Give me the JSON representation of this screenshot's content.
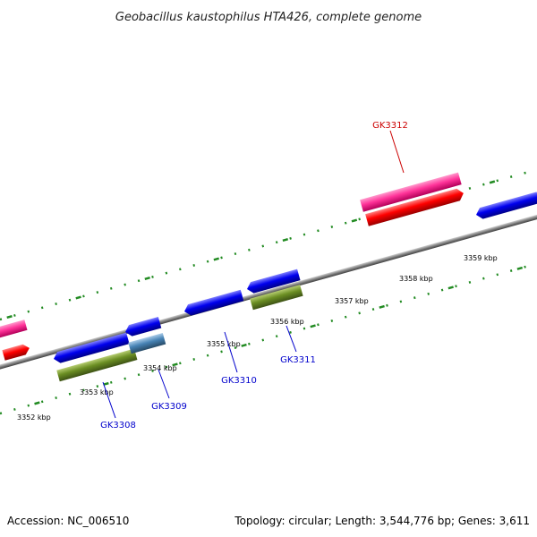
{
  "title": "Geobacillus kaustophilus HTA426, complete genome",
  "footer": {
    "accession": "Accession: NC_006510",
    "info": "Topology: circular; Length: 3,544,776 bp; Genes: 3,611"
  },
  "scale_labels": [
    "3352 kbp",
    "3353 kbp",
    "3354 kbp",
    "3355 kbp",
    "3356 kbp",
    "3357 kbp",
    "3358 kbp",
    "3359 kbp"
  ],
  "gene_labels": [
    {
      "name": "GK3312",
      "color": "#cc0000"
    },
    {
      "name": "GK3308",
      "color": "#0000cc"
    },
    {
      "name": "GK3309",
      "color": "#0000cc"
    },
    {
      "name": "GK3310",
      "color": "#0000cc"
    },
    {
      "name": "GK3311",
      "color": "#0000cc"
    }
  ],
  "colors": {
    "pink": "#ff3399",
    "red": "#ff0000",
    "blue": "#0000ee",
    "olive": "#6b8e23",
    "steel": "#4682b4",
    "backbone": "#808080",
    "ticks": "#228b22"
  }
}
